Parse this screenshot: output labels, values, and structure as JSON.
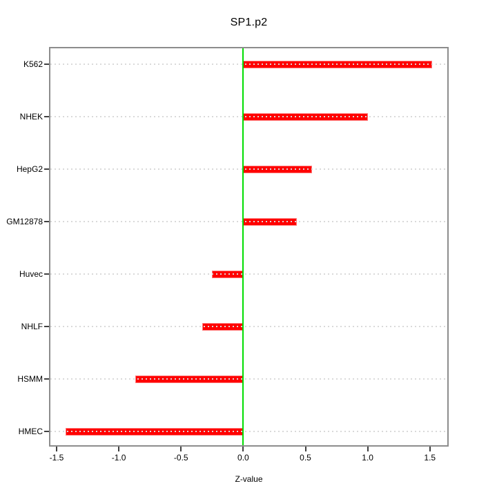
{
  "chart_data": {
    "type": "bar",
    "orientation": "horizontal",
    "title": "SP1.p2",
    "xlabel": "Z-value",
    "categories_top_to_bottom": [
      "K562",
      "NHEK",
      "HepG2",
      "GM12878",
      "Huvec",
      "NHLF",
      "HSMM",
      "HMEC"
    ],
    "values": [
      1.52,
      1.0,
      0.55,
      0.43,
      -0.25,
      -0.33,
      -0.87,
      -1.43
    ],
    "xlim": [
      -1.55,
      1.64
    ],
    "x_ticks": [
      -1.5,
      -1.0,
      -0.5,
      0.0,
      0.5,
      1.0,
      1.5
    ],
    "x_tick_labels": [
      "-1.5",
      "-1.0",
      "-0.5",
      "0.0",
      "0.5",
      "1.0",
      "1.5"
    ],
    "zero_line_x": 0,
    "grid": "dotted-horizontal-per-category",
    "legend": "none",
    "colors": {
      "bar": "#ff0000",
      "bar_edge": "#ff7a7a",
      "zero_line": "#00dd00",
      "grid": "#d9d9d9",
      "box": "#8c8c8c",
      "tick": "#3f3f3f",
      "text": "#000000",
      "background": "#ffffff"
    }
  }
}
